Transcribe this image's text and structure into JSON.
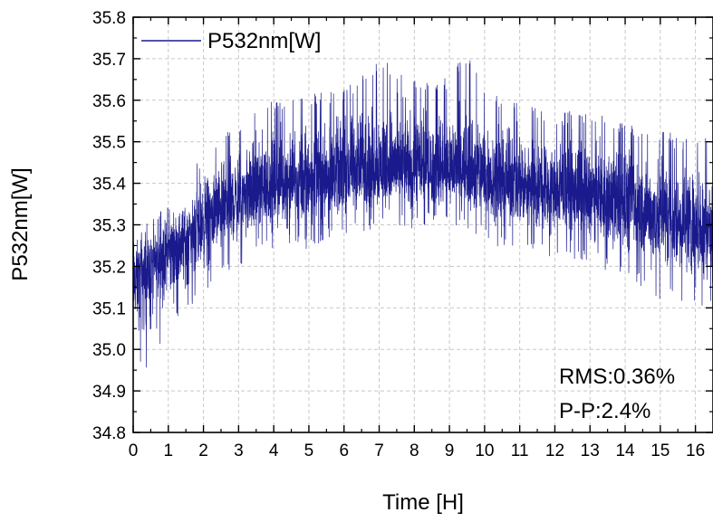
{
  "chart_data": {
    "type": "line",
    "title": "",
    "xlabel": "Time [H]",
    "ylabel": "P532nm[W]",
    "xlim": [
      0,
      16.5
    ],
    "ylim": [
      34.8,
      35.8
    ],
    "x_ticks": [
      0,
      1,
      2,
      3,
      4,
      5,
      6,
      7,
      8,
      9,
      10,
      11,
      12,
      13,
      14,
      15,
      16
    ],
    "y_ticks": [
      "34.8",
      "34.9",
      "35.0",
      "35.1",
      "35.2",
      "35.3",
      "35.4",
      "35.5",
      "35.6",
      "35.7",
      "35.8"
    ],
    "grid": true,
    "legend_position": "top-left",
    "series": [
      {
        "name": "P532nm[W]",
        "color": "#1a1a8c",
        "x": [
          0,
          0.25,
          0.5,
          0.75,
          1,
          1.5,
          2,
          2.5,
          3,
          3.5,
          4,
          4.5,
          5,
          5.5,
          6,
          6.5,
          7,
          7.5,
          8,
          8.5,
          9,
          9.5,
          10,
          10.5,
          11,
          11.5,
          12,
          12.5,
          13,
          13.5,
          14,
          14.5,
          15,
          15.5,
          16,
          16.5
        ],
        "mean": [
          35.16,
          35.19,
          35.2,
          35.22,
          35.24,
          35.27,
          35.31,
          35.34,
          35.36,
          35.38,
          35.39,
          35.4,
          35.41,
          35.42,
          35.42,
          35.43,
          35.43,
          35.43,
          35.43,
          35.43,
          35.43,
          35.42,
          35.41,
          35.4,
          35.4,
          35.39,
          35.38,
          35.38,
          35.37,
          35.36,
          35.35,
          35.33,
          35.32,
          35.31,
          35.3,
          35.29
        ],
        "upper": [
          35.33,
          35.3,
          35.32,
          35.33,
          35.36,
          35.4,
          35.48,
          35.52,
          35.55,
          35.58,
          35.6,
          35.6,
          35.62,
          35.62,
          35.63,
          35.66,
          35.7,
          35.68,
          35.66,
          35.64,
          35.66,
          35.72,
          35.64,
          35.6,
          35.6,
          35.58,
          35.56,
          35.58,
          35.57,
          35.56,
          35.55,
          35.53,
          35.53,
          35.52,
          35.52,
          35.5
        ],
        "lower": [
          35.0,
          34.95,
          34.92,
          35.0,
          35.05,
          35.08,
          35.12,
          35.17,
          35.2,
          35.23,
          35.24,
          35.25,
          35.24,
          35.26,
          35.27,
          35.28,
          35.29,
          35.3,
          35.29,
          35.3,
          35.3,
          35.28,
          35.27,
          35.24,
          35.24,
          35.23,
          35.22,
          35.21,
          35.2,
          35.19,
          35.17,
          35.15,
          35.12,
          35.12,
          35.1,
          35.09
        ]
      }
    ],
    "annotations": [
      "RMS:0.36%",
      "P-P:2.4%"
    ]
  }
}
